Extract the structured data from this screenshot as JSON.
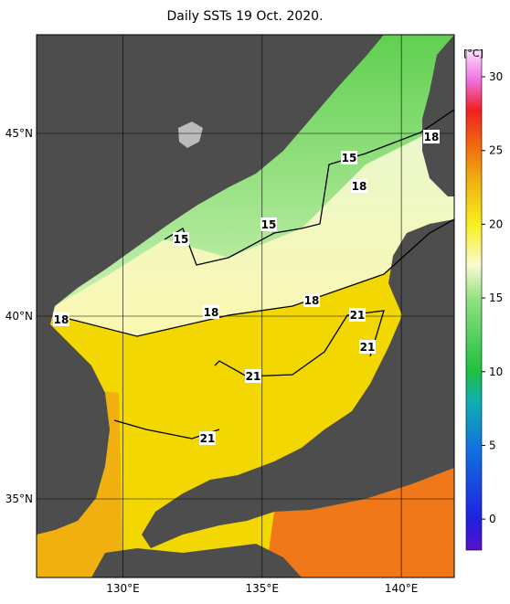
{
  "map": {
    "title": "Daily SSTs 19 Oct. 2020.",
    "xlim": [
      126.9,
      141.9
    ],
    "ylim": [
      32.85,
      47.7
    ],
    "xticks": [
      {
        "value": 130,
        "label": "130°E"
      },
      {
        "value": 135,
        "label": "135°E"
      },
      {
        "value": 140,
        "label": "140°E"
      }
    ],
    "yticks": [
      {
        "value": 35,
        "label": "35°N"
      },
      {
        "value": 40,
        "label": "40°N"
      },
      {
        "value": 45,
        "label": "45°N"
      }
    ],
    "colorbar": {
      "unit": "[°C]",
      "lim": [
        -2.1,
        31.8
      ],
      "ticks": [
        0,
        5,
        10,
        15,
        20,
        25,
        30
      ]
    },
    "contour_labels": [
      15,
      15,
      15,
      18,
      18,
      18,
      18,
      18,
      21,
      21,
      21,
      21
    ]
  }
}
